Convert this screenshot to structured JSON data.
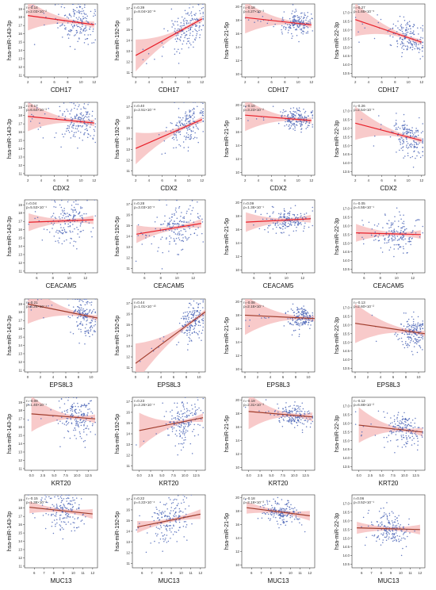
{
  "chart_data": {
    "type": "scatter",
    "rows": [
      {
        "xlabel": "CDH17",
        "xlim": [
          1.5,
          12.5
        ],
        "xticks": [
          2,
          4,
          6,
          8,
          10,
          12
        ]
      },
      {
        "xlabel": "CDX2",
        "xlim": [
          1.5,
          12.5
        ],
        "xticks": [
          2,
          4,
          6,
          8,
          10,
          12
        ]
      },
      {
        "xlabel": "CEACAM5",
        "xlim": [
          4.5,
          13.5
        ],
        "xticks": [
          6,
          8,
          10,
          12
        ]
      },
      {
        "xlabel": "EPS8L3",
        "xlim": [
          -0.5,
          11
        ],
        "xticks": [
          0,
          2,
          4,
          6,
          8,
          10
        ]
      },
      {
        "xlabel": "KRT20",
        "xlim": [
          -1.5,
          14.5
        ],
        "xticks": [
          "0.0",
          "2.5",
          "5.0",
          "7.5",
          "10.0",
          "12.5"
        ]
      },
      {
        "xlabel": "MUC13",
        "xlim": [
          5,
          12.5
        ],
        "xticks": [
          6,
          7,
          8,
          9,
          10,
          11,
          12
        ]
      }
    ],
    "columns": [
      {
        "ylabel": "hsa-miR-143-3p",
        "ylim": [
          10.8,
          19.6
        ],
        "yticks": [
          11,
          12,
          13,
          14,
          15,
          16,
          17,
          18,
          19
        ]
      },
      {
        "ylabel": "hsa-miR-192-5p",
        "ylim": [
          10.6,
          17.4
        ],
        "yticks": [
          11,
          12,
          13,
          14,
          15,
          16,
          17
        ]
      },
      {
        "ylabel": "hsa-miR-21-5p",
        "ylim": [
          9.6,
          20.4
        ],
        "yticks": [
          10,
          12,
          14,
          16,
          18,
          20
        ]
      },
      {
        "ylabel": "hsa-miR-22-3p",
        "ylim": [
          13.3,
          17.5
        ],
        "yticks": [
          "13.5",
          "14.0",
          "14.5",
          "15.0",
          "15.5",
          "16.0",
          "16.5",
          "17.0"
        ]
      }
    ],
    "panels": [
      {
        "row": 0,
        "col": 0,
        "r": "r=-0.14",
        "p": "p=2.03×10⁻²",
        "fit": [
          [
            2,
            18.2
          ],
          [
            12,
            17.1
          ]
        ],
        "xcenter": 9.5,
        "xspread": 1.4,
        "yspread": 1.3
      },
      {
        "row": 0,
        "col": 1,
        "r": "r=0.39",
        "p": "p=8.04×10⁻¹¹",
        "fit": [
          [
            2,
            12.6
          ],
          [
            12,
            16.0
          ]
        ],
        "xcenter": 9.8,
        "xspread": 1.4,
        "yspread": 1.0
      },
      {
        "row": 0,
        "col": 2,
        "r": "r=-0.18",
        "p": "p=4.27×10⁻³",
        "fit": [
          [
            2,
            18.4
          ],
          [
            12,
            17.3
          ]
        ],
        "xcenter": 9.8,
        "xspread": 1.2,
        "yspread": 0.8
      },
      {
        "row": 0,
        "col": 3,
        "r": "r=-0.27",
        "p": "p=1.65×10⁻⁵",
        "fit": [
          [
            2,
            16.6
          ],
          [
            12,
            15.3
          ]
        ],
        "xcenter": 10.0,
        "xspread": 1.3,
        "yspread": 0.5
      },
      {
        "row": 1,
        "col": 0,
        "r": "r=-0.17",
        "p": "p=6.64×10⁻³",
        "fit": [
          [
            2,
            17.9
          ],
          [
            12,
            17.1
          ]
        ],
        "xcenter": 9.5,
        "xspread": 1.5,
        "yspread": 1.3
      },
      {
        "row": 1,
        "col": 1,
        "r": "r=0.40",
        "p": "p=2.51×10⁻¹¹",
        "fit": [
          [
            2,
            13.1
          ],
          [
            12,
            15.8
          ]
        ],
        "xcenter": 9.8,
        "xspread": 1.4,
        "yspread": 1.0
      },
      {
        "row": 1,
        "col": 2,
        "r": "r=-0.10",
        "p": "p=3.23×10⁻²",
        "fit": [
          [
            2,
            18.5
          ],
          [
            12,
            17.7
          ]
        ],
        "xcenter": 9.8,
        "xspread": 1.2,
        "yspread": 0.8
      },
      {
        "row": 1,
        "col": 3,
        "r": "r=-0.26",
        "p": "p=2.54×10⁻⁵",
        "fit": [
          [
            2,
            16.3
          ],
          [
            12,
            15.3
          ]
        ],
        "xcenter": 10.0,
        "xspread": 1.3,
        "yspread": 0.5
      },
      {
        "row": 2,
        "col": 0,
        "r": "r=0.04",
        "p": "p=5.53×10⁻¹",
        "fit": [
          [
            5,
            16.9
          ],
          [
            13,
            17.2
          ]
        ],
        "xcenter": 10.0,
        "xspread": 1.4,
        "yspread": 1.3
      },
      {
        "row": 2,
        "col": 1,
        "r": "r=0.28",
        "p": "p=3.03×10⁻⁶",
        "fit": [
          [
            5,
            14.2
          ],
          [
            13,
            15.2
          ]
        ],
        "xcenter": 10.0,
        "xspread": 1.4,
        "yspread": 1.0
      },
      {
        "row": 2,
        "col": 2,
        "r": "r=0.09",
        "p": "p=1.35×10⁻¹",
        "fit": [
          [
            5,
            17.1
          ],
          [
            13,
            17.6
          ]
        ],
        "xcenter": 10.3,
        "xspread": 1.3,
        "yspread": 0.8
      },
      {
        "row": 2,
        "col": 3,
        "r": "r=-0.05",
        "p": "p=4.55×10⁻¹",
        "fit": [
          [
            5,
            15.6
          ],
          [
            13,
            15.5
          ]
        ],
        "xcenter": 10.0,
        "xspread": 1.3,
        "yspread": 0.5
      },
      {
        "row": 3,
        "col": 0,
        "r": "r=-0.21",
        "p": "p=6.26×10⁻⁴",
        "fit": [
          [
            0,
            19.0
          ],
          [
            11,
            17.3
          ]
        ],
        "xcenter": 9.0,
        "xspread": 1.0,
        "yspread": 1.2
      },
      {
        "row": 3,
        "col": 1,
        "r": "r=0.44",
        "p": "p=1.01×10⁻¹³",
        "fit": [
          [
            0,
            11.4
          ],
          [
            11,
            16.2
          ]
        ],
        "xcenter": 9.0,
        "xspread": 1.0,
        "yspread": 0.9
      },
      {
        "row": 3,
        "col": 2,
        "r": "r=-0.08",
        "p": "p=2.15×10⁻¹",
        "fit": [
          [
            0,
            18.0
          ],
          [
            11,
            17.5
          ]
        ],
        "xcenter": 9.0,
        "xspread": 1.0,
        "yspread": 0.8
      },
      {
        "row": 3,
        "col": 3,
        "r": "r=-0.13",
        "p": "p=2.60×10⁻²",
        "fit": [
          [
            0,
            16.1
          ],
          [
            11,
            15.5
          ]
        ],
        "xcenter": 9.0,
        "xspread": 1.0,
        "yspread": 0.5
      },
      {
        "row": 4,
        "col": 0,
        "r": "r=-0.09",
        "p": "p=1.40×10⁻¹",
        "fit": [
          [
            0,
            17.6
          ],
          [
            14,
            17.0
          ]
        ],
        "xcenter": 10.0,
        "xspread": 2.0,
        "yspread": 1.3
      },
      {
        "row": 4,
        "col": 1,
        "r": "r=0.23",
        "p": "p=2.26×10⁻⁴",
        "fit": [
          [
            0,
            14.3
          ],
          [
            14,
            15.5
          ]
        ],
        "xcenter": 10.0,
        "xspread": 2.0,
        "yspread": 1.0
      },
      {
        "row": 4,
        "col": 2,
        "r": "r=-0.19",
        "p": "p=2.31×10⁻³",
        "fit": [
          [
            0,
            18.3
          ],
          [
            14,
            17.5
          ]
        ],
        "xcenter": 10.0,
        "xspread": 2.0,
        "yspread": 0.8
      },
      {
        "row": 4,
        "col": 3,
        "r": "r=-0.12",
        "p": "p=6.88×10⁻²",
        "fit": [
          [
            0,
            15.9
          ],
          [
            14,
            15.5
          ]
        ],
        "xcenter": 10.0,
        "xspread": 2.0,
        "yspread": 0.5
      },
      {
        "row": 5,
        "col": 0,
        "r": "r=-0.15",
        "p": "p=1.38×10⁻²",
        "fit": [
          [
            5.5,
            18.1
          ],
          [
            12,
            17.3
          ]
        ],
        "xcenter": 9.0,
        "xspread": 1.0,
        "yspread": 1.3
      },
      {
        "row": 5,
        "col": 1,
        "r": "r=0.22",
        "p": "p=4.22×10⁻⁴",
        "fit": [
          [
            5.5,
            14.4
          ],
          [
            12,
            15.6
          ]
        ],
        "xcenter": 9.0,
        "xspread": 1.0,
        "yspread": 1.0
      },
      {
        "row": 5,
        "col": 2,
        "r": "r=-0.18",
        "p": "p=2.19×10⁻³",
        "fit": [
          [
            5.5,
            18.5
          ],
          [
            12,
            17.3
          ]
        ],
        "xcenter": 9.0,
        "xspread": 1.0,
        "yspread": 0.8
      },
      {
        "row": 5,
        "col": 3,
        "r": "r=0.06",
        "p": "p=3.52×10⁻¹",
        "fit": [
          [
            5.5,
            15.6
          ],
          [
            12,
            15.5
          ]
        ],
        "xcenter": 9.0,
        "xspread": 1.0,
        "yspread": 0.5
      }
    ],
    "colors": {
      "points": "#4a64b6",
      "fit_line_bright": "#e8202a",
      "fit_line_dark": "#a03c2c",
      "confidence_band": "#f5b8b8",
      "axis": "#333333"
    },
    "grid": false
  }
}
